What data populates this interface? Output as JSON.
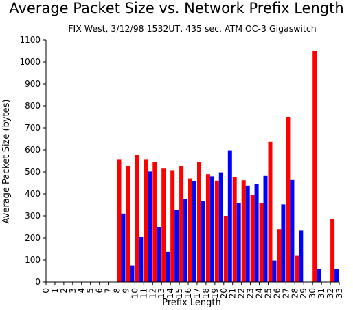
{
  "chart_data": {
    "type": "bar",
    "title": "Average Packet Size vs. Network Prefix Length",
    "subtitle": "FIX West, 3/12/98 1532UT, 435 sec. ATM OC-3 Gigaswitch",
    "xlabel": "Prefix Length",
    "ylabel": "Average Packet Size (bytes)",
    "ylim": [
      0,
      1100
    ],
    "yticks": [
      "0",
      "100",
      "200",
      "300",
      "400",
      "500",
      "600",
      "700",
      "800",
      "900",
      "1000",
      "1100"
    ],
    "categories": [
      "0",
      "1",
      "2",
      "3",
      "4",
      "5",
      "6",
      "7",
      "8",
      "9",
      "10",
      "11",
      "12",
      "13",
      "14",
      "15",
      "16",
      "17",
      "18",
      "19",
      "20",
      "21",
      "22",
      "23",
      "24",
      "25",
      "26",
      "27",
      "28",
      "29",
      "30",
      "31",
      "32",
      "33"
    ],
    "grid": false,
    "series": [
      {
        "color": "#ff0000",
        "values": [
          0,
          0,
          0,
          0,
          0,
          0,
          0,
          0,
          555,
          525,
          578,
          555,
          545,
          515,
          505,
          525,
          470,
          545,
          490,
          460,
          300,
          478,
          462,
          395,
          358,
          638,
          240,
          750,
          120,
          0,
          1050,
          0,
          285,
          0
        ]
      },
      {
        "color": "#0000ff",
        "values": [
          0,
          0,
          0,
          0,
          0,
          0,
          0,
          0,
          310,
          73,
          203,
          502,
          250,
          138,
          328,
          375,
          458,
          368,
          480,
          498,
          598,
          358,
          438,
          445,
          482,
          98,
          352,
          463,
          233,
          0,
          58,
          0,
          58,
          0
        ]
      }
    ]
  }
}
